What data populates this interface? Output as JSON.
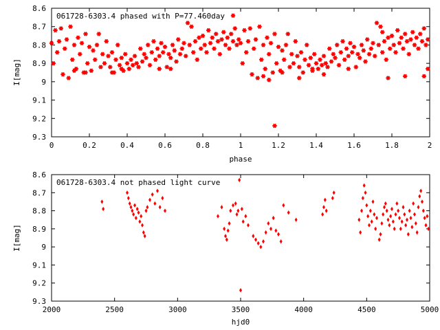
{
  "chart_data": [
    {
      "type": "scatter",
      "title": "061728-6303.4 phased with P=77.460day",
      "xlabel": "phase",
      "ylabel": "I[mag]",
      "xlim": [
        0,
        2
      ],
      "ylim": [
        9.3,
        8.6
      ],
      "y_inverted": true,
      "grid": false,
      "marker": "star",
      "color": "#ff0000",
      "xticks": [
        "0",
        "0.2",
        "0.4",
        "0.6",
        "0.8",
        "1",
        "1.2",
        "1.4",
        "1.6",
        "1.8",
        "2"
      ],
      "yticks": [
        "8.6",
        "8.7",
        "8.8",
        "8.9",
        "9",
        "9.1",
        "9.2",
        "9.3"
      ],
      "points": [
        [
          0.0,
          8.79
        ],
        [
          0.01,
          8.9
        ],
        [
          0.02,
          8.72
        ],
        [
          0.03,
          8.84
        ],
        [
          0.04,
          8.78
        ],
        [
          0.05,
          8.71
        ],
        [
          0.06,
          8.96
        ],
        [
          0.07,
          8.82
        ],
        [
          0.08,
          8.77
        ],
        [
          0.09,
          8.98
        ],
        [
          0.1,
          8.7
        ],
        [
          0.11,
          8.88
        ],
        [
          0.12,
          8.8
        ],
        [
          0.13,
          8.93
        ],
        [
          0.14,
          8.76
        ],
        [
          0.15,
          8.85
        ],
        [
          0.16,
          8.79
        ],
        [
          0.17,
          8.95
        ],
        [
          0.18,
          8.74
        ],
        [
          0.19,
          8.9
        ],
        [
          0.2,
          8.81
        ],
        [
          0.21,
          8.94
        ],
        [
          0.22,
          8.83
        ],
        [
          0.23,
          8.88
        ],
        [
          0.24,
          8.8
        ],
        [
          0.25,
          8.74
        ],
        [
          0.26,
          8.92
        ],
        [
          0.27,
          8.85
        ],
        [
          0.28,
          8.9
        ],
        [
          0.29,
          8.78
        ],
        [
          0.3,
          8.86
        ],
        [
          0.31,
          8.92
        ],
        [
          0.32,
          8.84
        ],
        [
          0.33,
          8.95
        ],
        [
          0.34,
          8.88
        ],
        [
          0.35,
          8.8
        ],
        [
          0.36,
          8.91
        ],
        [
          0.37,
          8.87
        ],
        [
          0.38,
          8.94
        ],
        [
          0.39,
          8.85
        ],
        [
          0.4,
          8.9
        ],
        [
          0.41,
          8.93
        ],
        [
          0.42,
          8.88
        ],
        [
          0.43,
          8.91
        ],
        [
          0.44,
          8.86
        ],
        [
          0.45,
          8.9
        ],
        [
          0.46,
          8.92
        ],
        [
          0.47,
          8.82
        ],
        [
          0.48,
          8.89
        ],
        [
          0.49,
          8.85
        ],
        [
          0.5,
          8.87
        ],
        [
          0.51,
          8.8
        ],
        [
          0.52,
          8.91
        ],
        [
          0.53,
          8.84
        ],
        [
          0.54,
          8.78
        ],
        [
          0.55,
          8.88
        ],
        [
          0.56,
          8.82
        ],
        [
          0.57,
          8.86
        ],
        [
          0.58,
          8.79
        ],
        [
          0.59,
          8.84
        ],
        [
          0.6,
          8.81
        ],
        [
          0.61,
          8.92
        ],
        [
          0.62,
          8.85
        ],
        [
          0.63,
          8.87
        ],
        [
          0.64,
          8.8
        ],
        [
          0.65,
          8.83
        ],
        [
          0.66,
          8.89
        ],
        [
          0.67,
          8.77
        ],
        [
          0.68,
          8.85
        ],
        [
          0.69,
          8.82
        ],
        [
          0.7,
          8.79
        ],
        [
          0.71,
          8.86
        ],
        [
          0.72,
          8.68
        ],
        [
          0.73,
          8.8
        ],
        [
          0.74,
          8.7
        ],
        [
          0.75,
          8.84
        ],
        [
          0.76,
          8.78
        ],
        [
          0.77,
          8.88
        ],
        [
          0.78,
          8.76
        ],
        [
          0.79,
          8.82
        ],
        [
          0.8,
          8.75
        ],
        [
          0.81,
          8.8
        ],
        [
          0.82,
          8.84
        ],
        [
          0.83,
          8.72
        ],
        [
          0.84,
          8.79
        ],
        [
          0.85,
          8.76
        ],
        [
          0.86,
          8.82
        ],
        [
          0.87,
          8.74
        ],
        [
          0.88,
          8.78
        ],
        [
          0.89,
          8.85
        ],
        [
          0.9,
          8.77
        ],
        [
          0.91,
          8.73
        ],
        [
          0.92,
          8.8
        ],
        [
          0.93,
          8.76
        ],
        [
          0.94,
          8.82
        ],
        [
          0.95,
          8.74
        ],
        [
          0.96,
          8.78
        ],
        [
          0.97,
          8.71
        ],
        [
          0.98,
          8.8
        ],
        [
          0.99,
          8.77
        ],
        [
          1.0,
          8.79
        ],
        [
          1.01,
          8.9
        ],
        [
          1.02,
          8.72
        ],
        [
          1.03,
          8.84
        ],
        [
          1.04,
          8.78
        ],
        [
          1.05,
          8.71
        ],
        [
          1.06,
          8.96
        ],
        [
          1.07,
          8.82
        ],
        [
          1.08,
          8.77
        ],
        [
          1.09,
          8.98
        ],
        [
          1.1,
          8.7
        ],
        [
          1.11,
          8.88
        ],
        [
          1.12,
          8.8
        ],
        [
          1.13,
          8.93
        ],
        [
          1.14,
          8.76
        ],
        [
          1.15,
          8.85
        ],
        [
          1.16,
          8.79
        ],
        [
          1.17,
          8.95
        ],
        [
          1.18,
          8.74
        ],
        [
          1.19,
          8.9
        ],
        [
          1.2,
          8.81
        ],
        [
          1.21,
          8.94
        ],
        [
          1.22,
          8.83
        ],
        [
          1.23,
          8.88
        ],
        [
          1.24,
          8.8
        ],
        [
          1.25,
          8.74
        ],
        [
          1.26,
          8.92
        ],
        [
          1.27,
          8.85
        ],
        [
          1.28,
          8.9
        ],
        [
          1.29,
          8.78
        ],
        [
          1.3,
          8.86
        ],
        [
          1.31,
          8.92
        ],
        [
          1.32,
          8.84
        ],
        [
          1.33,
          8.95
        ],
        [
          1.34,
          8.88
        ],
        [
          1.35,
          8.8
        ],
        [
          1.36,
          8.91
        ],
        [
          1.37,
          8.87
        ],
        [
          1.38,
          8.94
        ],
        [
          1.39,
          8.85
        ],
        [
          1.4,
          8.9
        ],
        [
          1.41,
          8.93
        ],
        [
          1.42,
          8.88
        ],
        [
          1.43,
          8.91
        ],
        [
          1.44,
          8.86
        ],
        [
          1.45,
          8.9
        ],
        [
          1.46,
          8.92
        ],
        [
          1.47,
          8.82
        ],
        [
          1.48,
          8.89
        ],
        [
          1.49,
          8.85
        ],
        [
          1.5,
          8.87
        ],
        [
          1.51,
          8.8
        ],
        [
          1.52,
          8.91
        ],
        [
          1.53,
          8.84
        ],
        [
          1.54,
          8.78
        ],
        [
          1.55,
          8.88
        ],
        [
          1.56,
          8.82
        ],
        [
          1.57,
          8.86
        ],
        [
          1.58,
          8.79
        ],
        [
          1.59,
          8.84
        ],
        [
          1.6,
          8.81
        ],
        [
          1.61,
          8.92
        ],
        [
          1.62,
          8.85
        ],
        [
          1.63,
          8.87
        ],
        [
          1.64,
          8.8
        ],
        [
          1.65,
          8.83
        ],
        [
          1.66,
          8.89
        ],
        [
          1.67,
          8.77
        ],
        [
          1.68,
          8.85
        ],
        [
          1.69,
          8.82
        ],
        [
          1.7,
          8.79
        ],
        [
          1.71,
          8.86
        ],
        [
          1.72,
          8.68
        ],
        [
          1.73,
          8.8
        ],
        [
          1.74,
          8.7
        ],
        [
          1.75,
          8.84
        ],
        [
          1.76,
          8.78
        ],
        [
          1.77,
          8.88
        ],
        [
          1.78,
          8.76
        ],
        [
          1.79,
          8.82
        ],
        [
          1.8,
          8.75
        ],
        [
          1.81,
          8.8
        ],
        [
          1.82,
          8.84
        ],
        [
          1.83,
          8.72
        ],
        [
          1.84,
          8.79
        ],
        [
          1.85,
          8.76
        ],
        [
          1.86,
          8.82
        ],
        [
          1.87,
          8.74
        ],
        [
          1.88,
          8.78
        ],
        [
          1.89,
          8.85
        ],
        [
          1.9,
          8.77
        ],
        [
          1.91,
          8.73
        ],
        [
          1.92,
          8.8
        ],
        [
          1.93,
          8.76
        ],
        [
          1.94,
          8.82
        ],
        [
          1.95,
          8.74
        ],
        [
          1.96,
          8.78
        ],
        [
          1.97,
          8.71
        ],
        [
          1.98,
          8.8
        ],
        [
          1.99,
          8.77
        ],
        [
          0.96,
          8.64
        ],
        [
          1.12,
          8.97
        ],
        [
          1.15,
          8.99
        ],
        [
          1.18,
          9.24
        ],
        [
          1.44,
          8.96
        ],
        [
          1.78,
          8.98
        ],
        [
          1.97,
          8.97
        ],
        [
          1.99,
          8.93
        ],
        [
          0.12,
          8.94
        ],
        [
          0.18,
          8.95
        ],
        [
          0.32,
          8.95
        ],
        [
          0.37,
          8.93
        ],
        [
          0.57,
          8.93
        ],
        [
          0.63,
          8.93
        ],
        [
          1.22,
          8.95
        ],
        [
          1.31,
          8.98
        ],
        [
          1.38,
          8.93
        ],
        [
          1.57,
          8.93
        ],
        [
          1.75,
          8.73
        ],
        [
          1.87,
          8.97
        ]
      ]
    },
    {
      "type": "scatter",
      "title": "061728-6303.4 not phased light curve",
      "xlabel": "hjd0",
      "ylabel": "I[mag]",
      "xlim": [
        2000,
        5000
      ],
      "ylim": [
        9.3,
        8.6
      ],
      "y_inverted": true,
      "grid": false,
      "marker": "diamond",
      "color": "#ff0000",
      "xticks": [
        "2000",
        "2500",
        "3000",
        "3500",
        "4000",
        "4500",
        "5000"
      ],
      "yticks": [
        "8.6",
        "8.7",
        "8.8",
        "8.9",
        "9",
        "9.1",
        "9.2",
        "9.3"
      ],
      "points": [
        [
          2400,
          8.75
        ],
        [
          2410,
          8.79
        ],
        [
          2600,
          8.7
        ],
        [
          2610,
          8.73
        ],
        [
          2620,
          8.76
        ],
        [
          2630,
          8.78
        ],
        [
          2640,
          8.8
        ],
        [
          2650,
          8.82
        ],
        [
          2660,
          8.77
        ],
        [
          2670,
          8.84
        ],
        [
          2680,
          8.79
        ],
        [
          2690,
          8.81
        ],
        [
          2700,
          8.86
        ],
        [
          2710,
          8.83
        ],
        [
          2720,
          8.88
        ],
        [
          2730,
          8.92
        ],
        [
          2740,
          8.94
        ],
        [
          2750,
          8.8
        ],
        [
          2760,
          8.78
        ],
        [
          2780,
          8.74
        ],
        [
          2800,
          8.71
        ],
        [
          2820,
          8.76
        ],
        [
          2840,
          8.69
        ],
        [
          2860,
          8.78
        ],
        [
          2880,
          8.73
        ],
        [
          2900,
          8.8
        ],
        [
          3320,
          8.83
        ],
        [
          3350,
          8.78
        ],
        [
          3370,
          8.9
        ],
        [
          3380,
          8.94
        ],
        [
          3390,
          8.96
        ],
        [
          3400,
          8.91
        ],
        [
          3410,
          8.87
        ],
        [
          3420,
          8.8
        ],
        [
          3440,
          8.77
        ],
        [
          3460,
          8.76
        ],
        [
          3470,
          8.82
        ],
        [
          3480,
          8.8
        ],
        [
          3490,
          8.63
        ],
        [
          3500,
          9.24
        ],
        [
          3510,
          8.79
        ],
        [
          3520,
          8.86
        ],
        [
          3540,
          8.83
        ],
        [
          3560,
          8.88
        ],
        [
          3600,
          8.94
        ],
        [
          3620,
          8.96
        ],
        [
          3640,
          8.98
        ],
        [
          3660,
          9.0
        ],
        [
          3680,
          8.97
        ],
        [
          3700,
          8.92
        ],
        [
          3720,
          8.87
        ],
        [
          3740,
          8.9
        ],
        [
          3760,
          8.84
        ],
        [
          3780,
          8.91
        ],
        [
          3800,
          8.93
        ],
        [
          3820,
          8.97
        ],
        [
          3840,
          8.77
        ],
        [
          3880,
          8.81
        ],
        [
          3940,
          8.85
        ],
        [
          4150,
          8.82
        ],
        [
          4160,
          8.78
        ],
        [
          4170,
          8.74
        ],
        [
          4180,
          8.8
        ],
        [
          4230,
          8.73
        ],
        [
          4240,
          8.7
        ],
        [
          4440,
          8.85
        ],
        [
          4450,
          8.92
        ],
        [
          4460,
          8.8
        ],
        [
          4470,
          8.73
        ],
        [
          4480,
          8.66
        ],
        [
          4490,
          8.7
        ],
        [
          4500,
          8.77
        ],
        [
          4510,
          8.83
        ],
        [
          4520,
          8.88
        ],
        [
          4530,
          8.8
        ],
        [
          4540,
          8.86
        ],
        [
          4550,
          8.75
        ],
        [
          4560,
          8.82
        ],
        [
          4570,
          8.9
        ],
        [
          4580,
          8.84
        ],
        [
          4600,
          8.96
        ],
        [
          4610,
          8.93
        ],
        [
          4620,
          8.87
        ],
        [
          4630,
          8.82
        ],
        [
          4640,
          8.78
        ],
        [
          4650,
          8.76
        ],
        [
          4660,
          8.8
        ],
        [
          4670,
          8.85
        ],
        [
          4680,
          8.88
        ],
        [
          4690,
          8.83
        ],
        [
          4700,
          8.79
        ],
        [
          4710,
          8.86
        ],
        [
          4720,
          8.9
        ],
        [
          4730,
          8.82
        ],
        [
          4740,
          8.76
        ],
        [
          4750,
          8.8
        ],
        [
          4760,
          8.84
        ],
        [
          4770,
          8.9
        ],
        [
          4780,
          8.86
        ],
        [
          4790,
          8.78
        ],
        [
          4800,
          8.82
        ],
        [
          4810,
          8.88
        ],
        [
          4820,
          8.85
        ],
        [
          4830,
          8.93
        ],
        [
          4840,
          8.8
        ],
        [
          4850,
          8.84
        ],
        [
          4860,
          8.89
        ],
        [
          4870,
          8.76
        ],
        [
          4880,
          8.82
        ],
        [
          4890,
          8.87
        ],
        [
          4900,
          8.92
        ],
        [
          4910,
          8.78
        ],
        [
          4920,
          8.72
        ],
        [
          4930,
          8.69
        ],
        [
          4940,
          8.75
        ],
        [
          4950,
          8.8
        ],
        [
          4960,
          8.84
        ],
        [
          4970,
          8.88
        ],
        [
          4980,
          8.83
        ],
        [
          4990,
          8.9
        ]
      ]
    }
  ]
}
